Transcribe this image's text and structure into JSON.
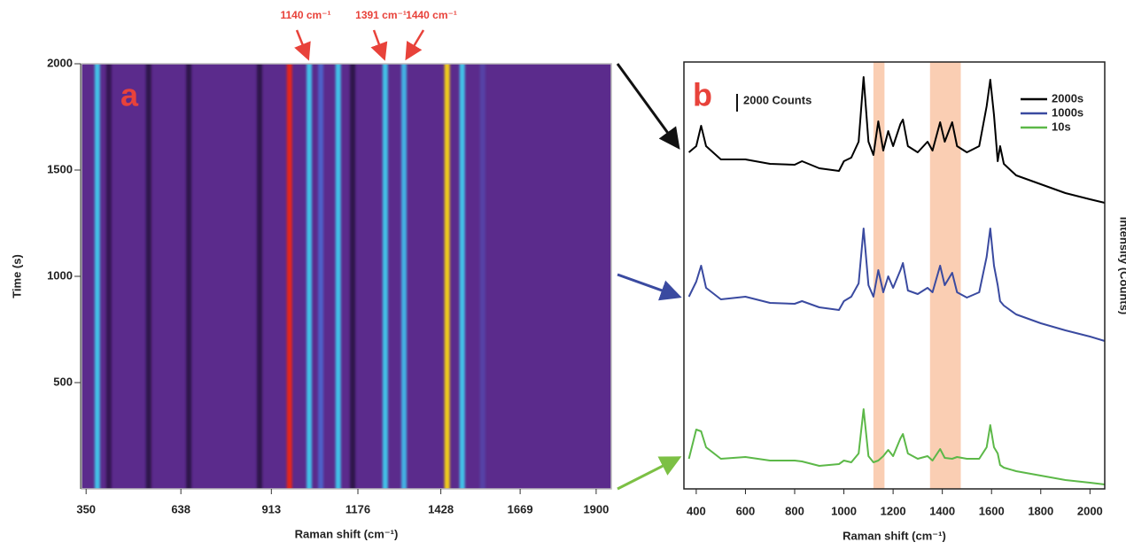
{
  "chart_data": [
    {
      "type": "heatmap",
      "panel_label": "a",
      "x_label": "Raman shift (cm⁻¹)",
      "y_label": "Time (s)",
      "xlim": [
        336,
        1946
      ],
      "ylim": [
        0,
        2000
      ],
      "xticks": [
        350,
        638,
        913,
        1176,
        1428,
        1669,
        1900
      ],
      "yticks": [
        500,
        1000,
        1500,
        2000
      ],
      "background": 0.27,
      "colorscale": [
        [
          0,
          "#150826"
        ],
        [
          0.27,
          "#5b2b8c"
        ],
        [
          0.5,
          "#4a6fd6"
        ],
        [
          0.68,
          "#40d0ea"
        ],
        [
          0.86,
          "#f2e41e"
        ],
        [
          1,
          "#e3261a"
        ]
      ],
      "x": [
        384,
        419,
        540,
        662,
        877,
        968,
        1028,
        1063,
        1116,
        1160,
        1259,
        1316,
        1447,
        1493,
        1555
      ],
      "values": [
        0.65,
        0.12,
        0.1,
        0.1,
        0.1,
        1.0,
        0.65,
        0.45,
        0.65,
        0.1,
        0.65,
        0.62,
        0.88,
        0.65,
        0.35
      ],
      "annotations": [
        "1140 cm⁻¹",
        "1391 cm⁻¹",
        "1440 cm⁻¹"
      ]
    },
    {
      "type": "line",
      "panel_label": "b",
      "x_label": "Raman shift (cm⁻¹)",
      "y_label": "Intensity (Counts)",
      "xlim": [
        350,
        2060
      ],
      "ylim": [
        0,
        48200
      ],
      "xticks": [
        400,
        600,
        800,
        1000,
        1200,
        1400,
        1600,
        1800,
        2000
      ],
      "scale_bar": {
        "value": 2000,
        "label": "2000 Counts"
      },
      "highlights": [
        [
          1120,
          1165
        ],
        [
          1350,
          1475
        ]
      ],
      "highlight_color": "#f9c6a6",
      "x": [
        370,
        400,
        420,
        440,
        500,
        600,
        700,
        800,
        830,
        900,
        980,
        1000,
        1030,
        1060,
        1080,
        1100,
        1120,
        1140,
        1160,
        1180,
        1200,
        1230,
        1240,
        1260,
        1300,
        1340,
        1360,
        1391,
        1410,
        1440,
        1460,
        1500,
        1550,
        1580,
        1595,
        1610,
        1625,
        1635,
        1650,
        1700,
        1800,
        1900,
        2000,
        2060
      ],
      "series": [
        {
          "name": "2000s",
          "color": "#000000",
          "values": [
            38000,
            38700,
            41000,
            38700,
            37200,
            37200,
            36700,
            36600,
            37000,
            36200,
            35900,
            37000,
            37400,
            39200,
            46500,
            39200,
            37700,
            41500,
            38200,
            40400,
            38700,
            41200,
            41700,
            38700,
            38000,
            39200,
            38200,
            41400,
            39200,
            41400,
            38700,
            38000,
            38700,
            43200,
            46200,
            42200,
            37000,
            38700,
            36700,
            35400,
            34400,
            33400,
            32700,
            32300
          ]
        },
        {
          "name": "1000s",
          "color": "#3a4aa0",
          "values": [
            21700,
            23400,
            25200,
            22700,
            21400,
            21700,
            21000,
            20900,
            21200,
            20500,
            20200,
            21200,
            21700,
            23200,
            29400,
            23000,
            21700,
            24700,
            22200,
            24000,
            22700,
            24700,
            25500,
            22400,
            22000,
            22700,
            22200,
            25200,
            23000,
            24400,
            22200,
            21600,
            22200,
            26200,
            29400,
            25200,
            23000,
            21200,
            20700,
            19700,
            18700,
            17900,
            17200,
            16700
          ]
        },
        {
          "name": "10s",
          "color": "#5cb848",
          "values": [
            3400,
            6700,
            6500,
            4700,
            3400,
            3600,
            3200,
            3200,
            3100,
            2600,
            2800,
            3200,
            3000,
            4000,
            9000,
            3700,
            3000,
            3200,
            3700,
            4400,
            3700,
            5700,
            6200,
            4000,
            3400,
            3700,
            3200,
            4500,
            3500,
            3400,
            3600,
            3400,
            3400,
            4700,
            7200,
            4700,
            4000,
            2700,
            2400,
            2000,
            1500,
            1000,
            700,
            500
          ]
        }
      ]
    }
  ]
}
